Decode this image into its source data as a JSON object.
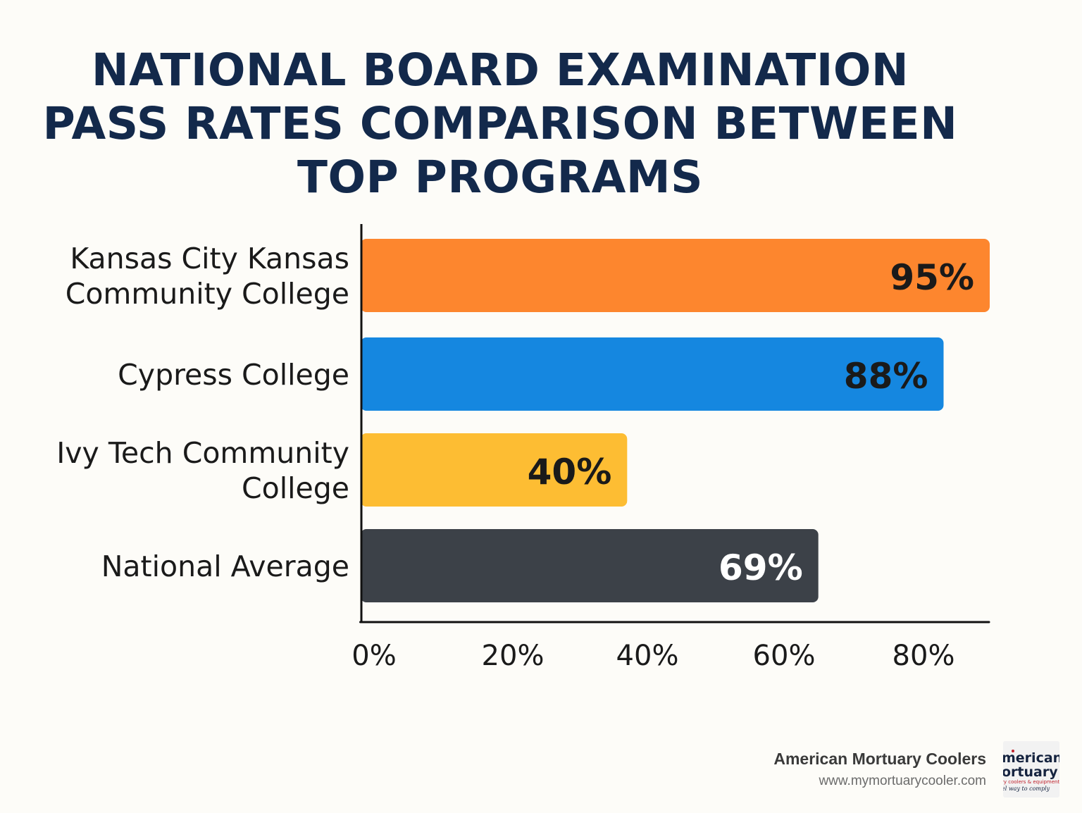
{
  "title": {
    "line1": "NATIONAL BOARD EXAMINATION",
    "line2": "PASS RATES COMPARISON BETWEEN",
    "line3": "TOP PROGRAMS"
  },
  "chart_data": {
    "type": "bar",
    "orientation": "horizontal",
    "title": "NATIONAL BOARD EXAMINATION PASS RATES COMPARISON BETWEEN TOP PROGRAMS",
    "categories": [
      [
        "Kansas City Kansas",
        "Community College"
      ],
      [
        "Cypress College"
      ],
      [
        "Ivy Tech Community",
        "College"
      ],
      [
        "National Average"
      ]
    ],
    "values": [
      95,
      88,
      40,
      69
    ],
    "value_labels": [
      "95%",
      "88%",
      "40%",
      "69%"
    ],
    "colors": [
      "#fd862e",
      "#1587e0",
      "#fdbd33",
      "#3c4148"
    ],
    "label_colors": [
      "#1a1a1a",
      "#1a1a1a",
      "#1a1a1a",
      "#ffffff"
    ],
    "x_ticks": [
      "0%",
      "20%",
      "40%",
      "60%",
      "80%"
    ],
    "xlabel": "",
    "ylabel": "",
    "grid": false,
    "legend": "none"
  },
  "footer": {
    "company": "American Mortuary Coolers",
    "url": "www.mymortuarycooler.com"
  },
  "logo": {
    "line1": "merican",
    "line2": "ortuary",
    "line3": "ry coolers & equipment",
    "line4": "el way to comply"
  }
}
